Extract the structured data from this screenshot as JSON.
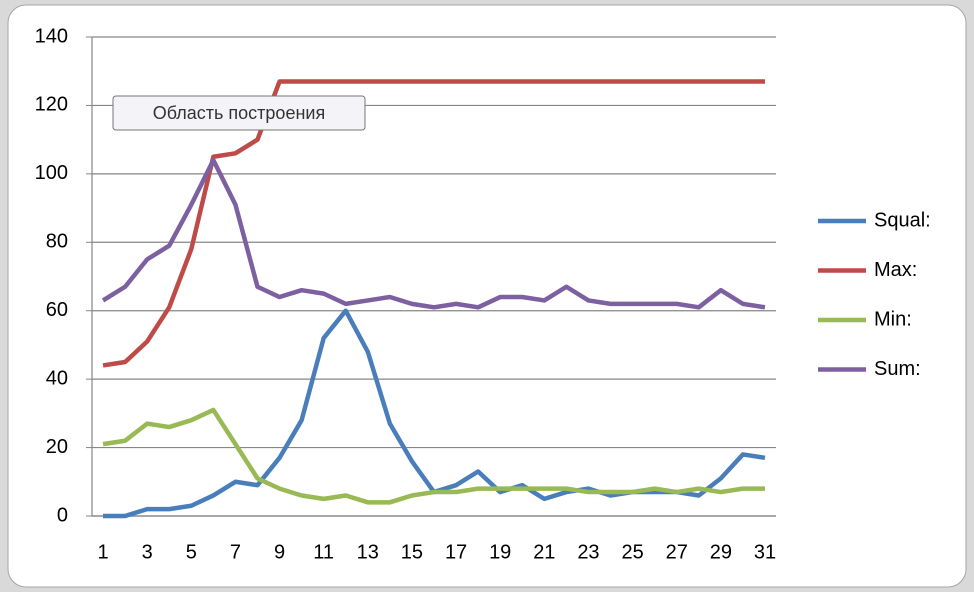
{
  "chart_data": {
    "type": "line",
    "annotation": "Область построения",
    "categories": [
      1,
      null,
      3,
      null,
      5,
      null,
      7,
      null,
      9,
      null,
      11,
      null,
      13,
      null,
      15,
      null,
      17,
      null,
      19,
      null,
      21,
      null,
      23,
      null,
      25,
      null,
      27,
      null,
      29,
      null,
      31
    ],
    "series": [
      {
        "name": "Squal:",
        "color": "#4a7ebb",
        "values": [
          0,
          0,
          2,
          2,
          3,
          6,
          10,
          9,
          17,
          28,
          52,
          60,
          48,
          27,
          16,
          7,
          9,
          13,
          7,
          9,
          5,
          7,
          8,
          6,
          7,
          7,
          7,
          6,
          11,
          18,
          17
        ]
      },
      {
        "name": "Max:",
        "color": "#be4b48",
        "values": [
          44,
          45,
          51,
          61,
          78,
          105,
          106,
          110,
          127,
          127,
          127,
          127,
          127,
          127,
          127,
          127,
          127,
          127,
          127,
          127,
          127,
          127,
          127,
          127,
          127,
          127,
          127,
          127,
          127,
          127,
          127
        ]
      },
      {
        "name": "Min:",
        "color": "#98b954",
        "values": [
          21,
          22,
          27,
          26,
          28,
          31,
          21,
          11,
          8,
          6,
          5,
          6,
          4,
          4,
          6,
          7,
          7,
          8,
          8,
          8,
          8,
          8,
          7,
          7,
          7,
          8,
          7,
          8,
          7,
          8,
          8
        ]
      },
      {
        "name": "Sum:",
        "color": "#7d60a0",
        "values": [
          63,
          67,
          75,
          79,
          91,
          104,
          91,
          67,
          64,
          66,
          65,
          62,
          63,
          64,
          62,
          61,
          62,
          61,
          64,
          64,
          63,
          67,
          63,
          62,
          62,
          62,
          62,
          61,
          66,
          62,
          61
        ]
      }
    ],
    "ylim": [
      0,
      140
    ],
    "yticks": [
      0,
      20,
      40,
      60,
      80,
      100,
      120,
      140
    ],
    "grid": true,
    "legend": "right"
  }
}
